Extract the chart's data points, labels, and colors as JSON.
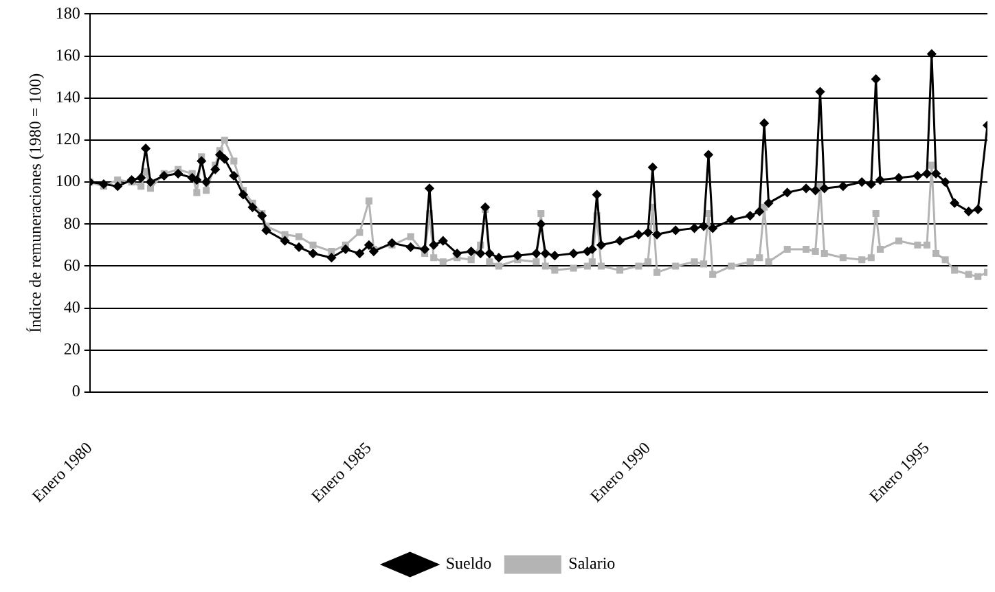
{
  "chart_data": {
    "type": "line",
    "ylabel": "Índice de remuneraciones (1980 = 100)",
    "x": [
      "1980-01",
      "1980-04",
      "1980-07",
      "1980-10",
      "1980-12",
      "1981-01",
      "1981-02",
      "1981-05",
      "1981-08",
      "1981-11",
      "1981-12",
      "1982-01",
      "1982-02",
      "1982-04",
      "1982-05",
      "1982-06",
      "1982-08",
      "1982-10",
      "1982-12",
      "1983-02",
      "1983-03",
      "1983-07",
      "1983-10",
      "1984-01",
      "1984-05",
      "1984-08",
      "1984-11",
      "1985-01",
      "1985-02",
      "1985-06",
      "1985-10",
      "1986-01",
      "1986-02",
      "1986-03",
      "1986-05",
      "1986-08",
      "1986-11",
      "1987-01",
      "1987-02",
      "1987-03",
      "1987-05",
      "1987-09",
      "1988-01",
      "1988-02",
      "1988-03",
      "1988-05",
      "1988-09",
      "1988-12",
      "1989-01",
      "1989-02",
      "1989-03",
      "1989-07",
      "1989-11",
      "1990-01",
      "1990-02",
      "1990-03",
      "1990-07",
      "1990-11",
      "1991-01",
      "1991-02",
      "1991-03",
      "1991-07",
      "1991-11",
      "1992-01",
      "1992-02",
      "1992-03",
      "1992-07",
      "1992-11",
      "1993-01",
      "1993-02",
      "1993-03",
      "1993-07",
      "1993-11",
      "1994-01",
      "1994-02",
      "1994-03",
      "1994-07",
      "1994-11",
      "1995-01",
      "1995-02",
      "1995-03",
      "1995-05",
      "1995-07",
      "1995-10",
      "1995-12",
      "1996-02"
    ],
    "series": [
      {
        "name": "Sueldo",
        "color": "#000000",
        "marker": "diamond",
        "values": [
          100,
          99,
          98,
          101,
          102,
          116,
          100,
          103,
          104,
          102,
          101,
          110,
          100,
          106,
          113,
          111,
          103,
          94,
          88,
          84,
          77,
          72,
          69,
          66,
          64,
          68,
          66,
          70,
          67,
          71,
          69,
          68,
          97,
          70,
          72,
          66,
          67,
          66,
          88,
          66,
          64,
          65,
          66,
          80,
          66,
          65,
          66,
          67,
          68,
          94,
          70,
          72,
          75,
          76,
          107,
          75,
          77,
          78,
          79,
          113,
          78,
          82,
          84,
          86,
          128,
          90,
          95,
          97,
          96,
          143,
          97,
          98,
          100,
          99,
          149,
          101,
          102,
          103,
          104,
          161,
          104,
          100,
          90,
          86,
          87,
          127
        ]
      },
      {
        "name": "Salario",
        "color": "#b4b4b4",
        "marker": "square",
        "values": [
          100,
          98,
          101,
          100,
          98,
          105,
          97,
          104,
          106,
          104,
          95,
          112,
          96,
          108,
          115,
          120,
          110,
          96,
          90,
          85,
          79,
          75,
          74,
          70,
          67,
          70,
          76,
          91,
          68,
          70,
          74,
          66,
          85,
          64,
          62,
          64,
          63,
          70,
          87,
          62,
          60,
          63,
          62,
          85,
          60,
          58,
          59,
          60,
          62,
          84,
          60,
          58,
          60,
          62,
          88,
          57,
          60,
          62,
          61,
          85,
          56,
          60,
          62,
          64,
          88,
          62,
          68,
          68,
          67,
          98,
          66,
          64,
          63,
          64,
          85,
          68,
          72,
          70,
          70,
          108,
          66,
          63,
          58,
          56,
          55,
          57
        ]
      }
    ],
    "xlim": [
      "1980-01",
      "1996-02"
    ],
    "xticks": [
      {
        "value": "1980-01",
        "label": "Enero 1980"
      },
      {
        "value": "1985-01",
        "label": "Enero 1985"
      },
      {
        "value": "1990-01",
        "label": "Enero 1990"
      },
      {
        "value": "1995-01",
        "label": "Enero 1995"
      }
    ],
    "ylim": [
      0,
      180
    ],
    "yticks": [
      0,
      20,
      40,
      60,
      80,
      100,
      120,
      140,
      160,
      180
    ],
    "grid": "y",
    "legend": "bottom",
    "line_style": "solid"
  }
}
